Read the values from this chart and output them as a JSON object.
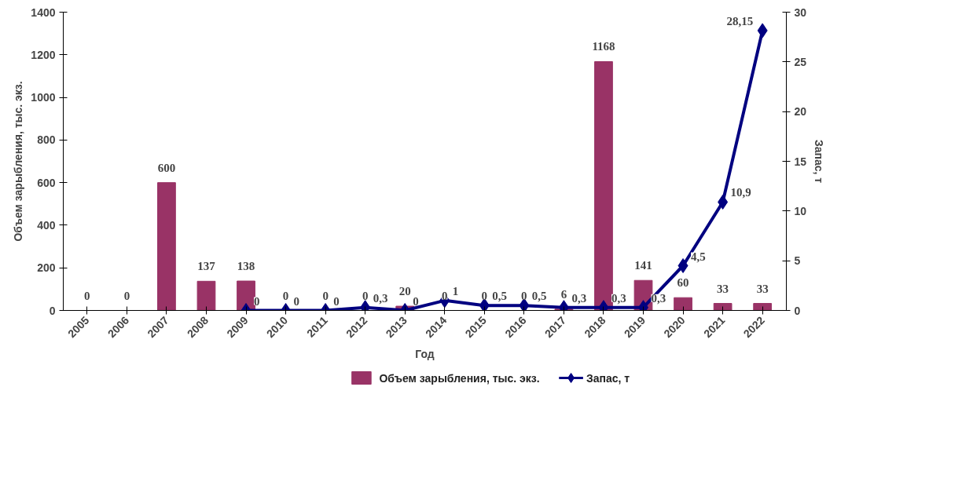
{
  "chart_data": {
    "type": "bar",
    "xlabel": "Год",
    "ylabel": "Объем зарыбления, тыс. экз.",
    "y2label": "Запас, т",
    "categories": [
      "2005",
      "2006",
      "2007",
      "2008",
      "2009",
      "2010",
      "2011",
      "2012",
      "2013",
      "2014",
      "2015",
      "2016",
      "2017",
      "2018",
      "2019",
      "2020",
      "2021",
      "2022"
    ],
    "series": [
      {
        "name": "Объем зарыбления, тыс. экз.",
        "type": "bar",
        "color": "#993366",
        "values": [
          0,
          0,
          600,
          137,
          138,
          0,
          0,
          0,
          20,
          0,
          0,
          0,
          6,
          1168,
          141,
          60,
          33,
          33
        ],
        "data_labels": true
      },
      {
        "name": "Запас, т",
        "type": "line",
        "axis": "y2",
        "color": "#000080",
        "marker": "diamond",
        "values": [
          null,
          null,
          null,
          null,
          0,
          0,
          0,
          0.3,
          0,
          1,
          0.5,
          0.5,
          0.3,
          0.3,
          0.3,
          4.5,
          10.9,
          28.15
        ],
        "value_labels": [
          null,
          null,
          null,
          null,
          "0",
          "0",
          "0",
          "0,3",
          "0",
          "1",
          "0,5",
          "0,5",
          "0,3",
          "0,3",
          "0,3",
          "4,5",
          "10,9",
          "28,15"
        ]
      }
    ],
    "ylim": [
      0,
      1400
    ],
    "yticks": [
      0,
      200,
      400,
      600,
      800,
      1000,
      1200,
      1400
    ],
    "y2lim": [
      0,
      30
    ],
    "y2ticks": [
      0,
      5,
      10,
      15,
      20,
      25,
      30
    ],
    "grid": false,
    "legend": "bottom"
  }
}
